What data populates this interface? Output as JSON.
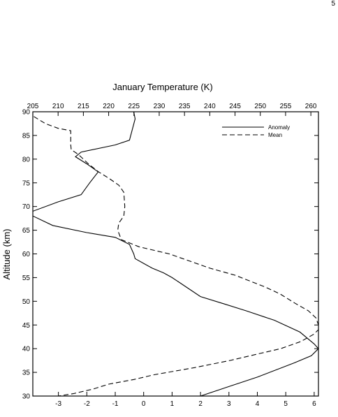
{
  "page_number": "5",
  "chart_data": {
    "type": "line",
    "title": "",
    "xlabel_top": "January Temperature (K)",
    "ylabel": "Altitude (km)",
    "xlabel_bottom": "",
    "ylim": [
      30,
      90
    ],
    "yticks": [
      30,
      35,
      40,
      45,
      50,
      55,
      60,
      65,
      70,
      75,
      80,
      85,
      90
    ],
    "x_bottom_range": [
      -3.9,
      6.15
    ],
    "x_bottom_ticks": [
      -3,
      -2,
      -1,
      0,
      1,
      2,
      3,
      4,
      5,
      6
    ],
    "x_top_range": [
      205,
      261.5
    ],
    "x_top_ticks": [
      205,
      210,
      215,
      220,
      225,
      230,
      235,
      240,
      245,
      250,
      255,
      260
    ],
    "grid": false,
    "legend_position": "top-right",
    "series": [
      {
        "name": "Anomaly",
        "axis": "bottom",
        "style": "solid",
        "points": [
          [
            -0.35,
            90
          ],
          [
            -0.3,
            88.5
          ],
          [
            -0.5,
            84
          ],
          [
            -1.0,
            83
          ],
          [
            -2.2,
            81.5
          ],
          [
            -2.4,
            80.5
          ],
          [
            -2.0,
            79
          ],
          [
            -1.6,
            77.3
          ],
          [
            -1.9,
            75
          ],
          [
            -2.2,
            72.5
          ],
          [
            -3.0,
            71
          ],
          [
            -3.9,
            69
          ],
          [
            -3.9,
            68
          ],
          [
            -3.2,
            66
          ],
          [
            -2.0,
            64.5
          ],
          [
            -1.0,
            63.5
          ],
          [
            -0.5,
            62
          ],
          [
            -0.35,
            60
          ],
          [
            -0.3,
            59
          ],
          [
            0.0,
            58
          ],
          [
            0.3,
            57
          ],
          [
            0.7,
            56
          ],
          [
            1.0,
            55
          ],
          [
            1.5,
            53
          ],
          [
            2.0,
            51
          ],
          [
            2.8,
            49.5
          ],
          [
            3.6,
            48
          ],
          [
            4.6,
            46
          ],
          [
            5.5,
            43.5
          ],
          [
            6.0,
            41
          ],
          [
            6.15,
            40
          ],
          [
            5.9,
            38.5
          ],
          [
            5.3,
            37
          ],
          [
            4.0,
            34
          ],
          [
            3.0,
            32
          ],
          [
            2.0,
            30
          ]
        ]
      },
      {
        "name": "Mean",
        "axis": "top",
        "style": "dashed",
        "points": [
          [
            205.2,
            89
          ],
          [
            207.5,
            87.5
          ],
          [
            210,
            86.5
          ],
          [
            212.5,
            86
          ],
          [
            212.5,
            83
          ],
          [
            212.6,
            82
          ],
          [
            214,
            81
          ],
          [
            216,
            79
          ],
          [
            218,
            77.3
          ],
          [
            220,
            76
          ],
          [
            222,
            74.5
          ],
          [
            223,
            73
          ],
          [
            223.2,
            70
          ],
          [
            223,
            68
          ],
          [
            222,
            66.5
          ],
          [
            221.8,
            65
          ],
          [
            222.5,
            63
          ],
          [
            226,
            61.5
          ],
          [
            232,
            60
          ],
          [
            240,
            57
          ],
          [
            245,
            55.5
          ],
          [
            251,
            53
          ],
          [
            254,
            51.5
          ],
          [
            257,
            49.5
          ],
          [
            259.5,
            48
          ],
          [
            261,
            46.5
          ],
          [
            261.5,
            45
          ],
          [
            261.5,
            44
          ],
          [
            260.5,
            43
          ],
          [
            258,
            41.5
          ],
          [
            254,
            40
          ],
          [
            250,
            39
          ],
          [
            244,
            37.5
          ],
          [
            237,
            36
          ],
          [
            229,
            34.5
          ],
          [
            225,
            33.5
          ],
          [
            220,
            32.5
          ],
          [
            217,
            31.5
          ],
          [
            213,
            30.5
          ],
          [
            210,
            30
          ]
        ]
      }
    ]
  }
}
